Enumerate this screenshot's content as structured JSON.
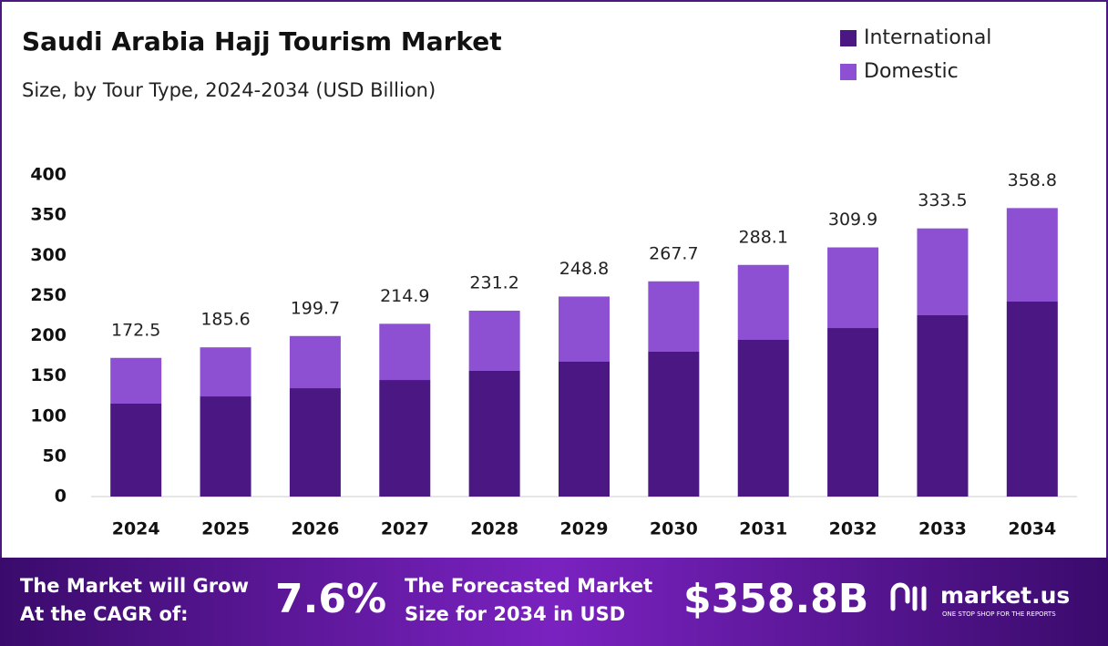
{
  "chart_data": {
    "type": "stacked_bar",
    "title": "Saudi Arabia Hajj Tourism Market",
    "subtitle": "Size, by Tour Type, 2024-2034 (USD Billion)",
    "categories": [
      "2024",
      "2025",
      "2026",
      "2027",
      "2028",
      "2029",
      "2030",
      "2031",
      "2032",
      "2033",
      "2034"
    ],
    "series": [
      {
        "name": "International",
        "color": "#4b1782",
        "values": [
          115.6,
          124.6,
          134.8,
          145.0,
          156.4,
          167.7,
          180.2,
          194.9,
          209.6,
          225.5,
          242.5
        ]
      },
      {
        "name": "Domestic",
        "color": "#8d50d2",
        "values": [
          56.9,
          61.0,
          64.9,
          69.9,
          74.8,
          81.1,
          87.5,
          93.2,
          100.3,
          108.0,
          116.3
        ]
      }
    ],
    "totals": [
      172.5,
      185.6,
      199.7,
      214.9,
      231.2,
      248.8,
      267.7,
      288.1,
      309.9,
      333.5,
      358.8
    ],
    "ylim": [
      0,
      400
    ],
    "yticks": [
      0,
      50,
      100,
      150,
      200,
      250,
      300,
      350,
      400
    ],
    "grid": false,
    "legend": "top-right"
  },
  "footer": {
    "cagr_text": [
      "The Market will Grow",
      "At the CAGR of:"
    ],
    "cagr_value": "7.6%",
    "forecast_text": [
      "The Forecasted Market",
      "Size for 2034 in USD"
    ],
    "forecast_value": "$358.8B",
    "brand": "market.us",
    "tagline": "ONE STOP SHOP FOR THE REPORTS"
  }
}
